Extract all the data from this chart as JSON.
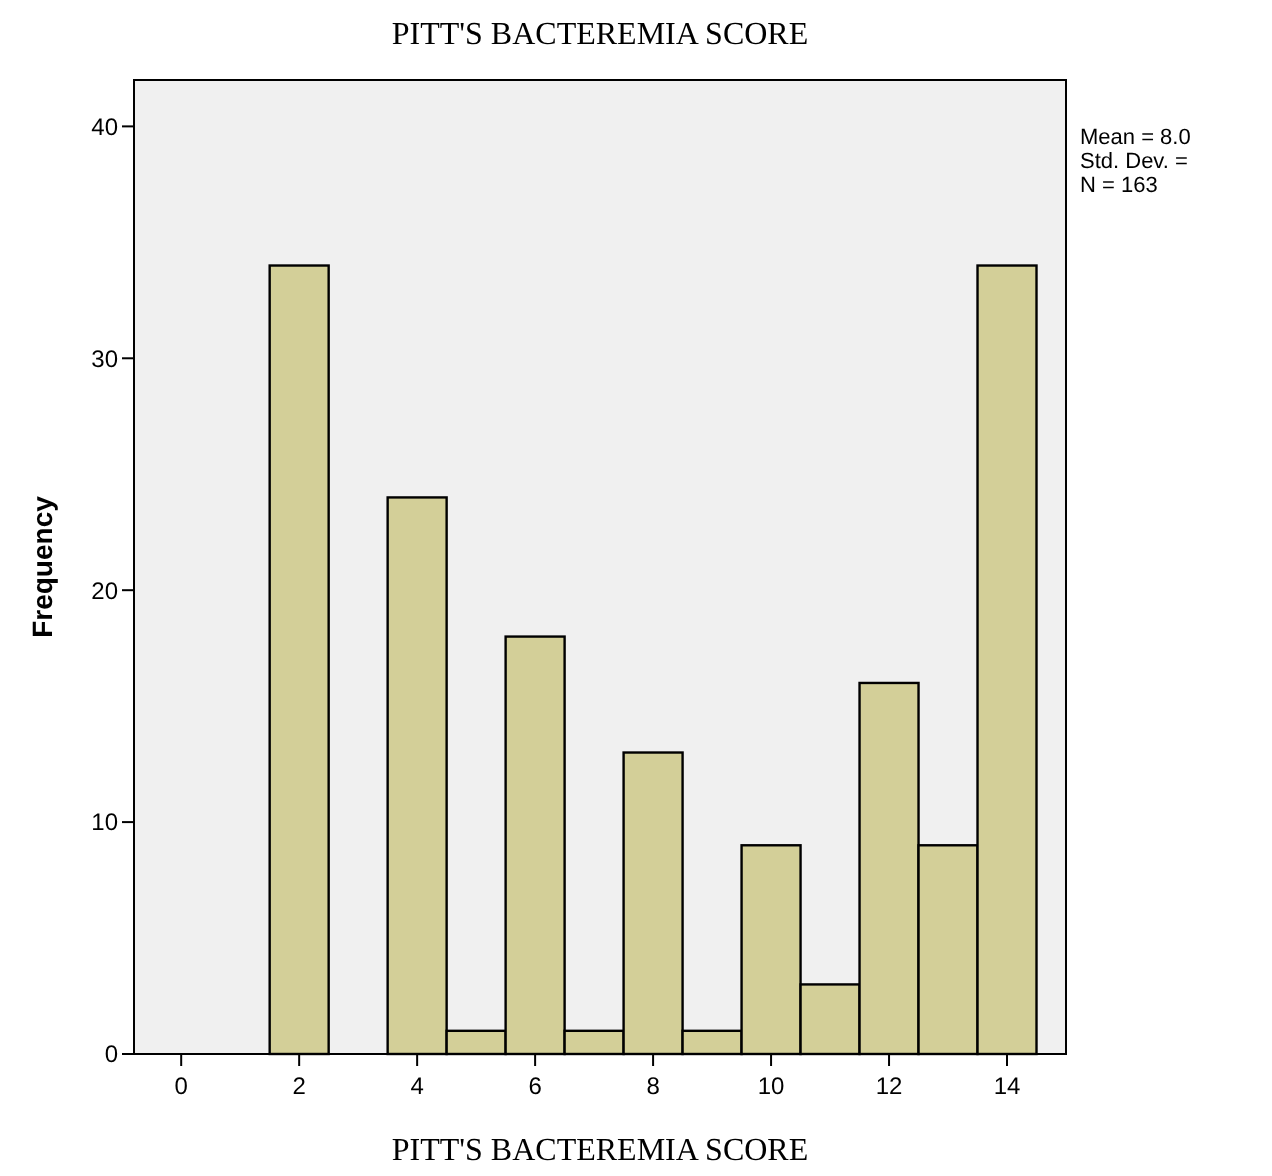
{
  "chart_data": {
    "type": "histogram",
    "title": "PITT'S BACTEREMIA SCORE",
    "xlabel": "PITT'S BACTEREMIA SCORE",
    "ylabel": "Frequency",
    "bins": [
      1.5,
      2.5,
      3.5,
      4.5,
      5.5,
      6.5,
      7.5,
      8.5,
      9.5,
      10.5,
      11.5,
      12.5,
      13.5,
      14.5
    ],
    "values": [
      34,
      0,
      24,
      1,
      18,
      1,
      13,
      1,
      9,
      3,
      16,
      9,
      34
    ],
    "color": "#d3cf98",
    "xlim": [
      -0.8,
      15
    ],
    "xticks": [
      0,
      2,
      4,
      6,
      8,
      10,
      12,
      14
    ],
    "ylim": [
      0,
      42
    ],
    "yticks": [
      0,
      10,
      20,
      30,
      40
    ],
    "grid": false,
    "annotations": [
      "Mean = 8.0",
      "Std. Dev. =",
      "N = 163"
    ]
  }
}
